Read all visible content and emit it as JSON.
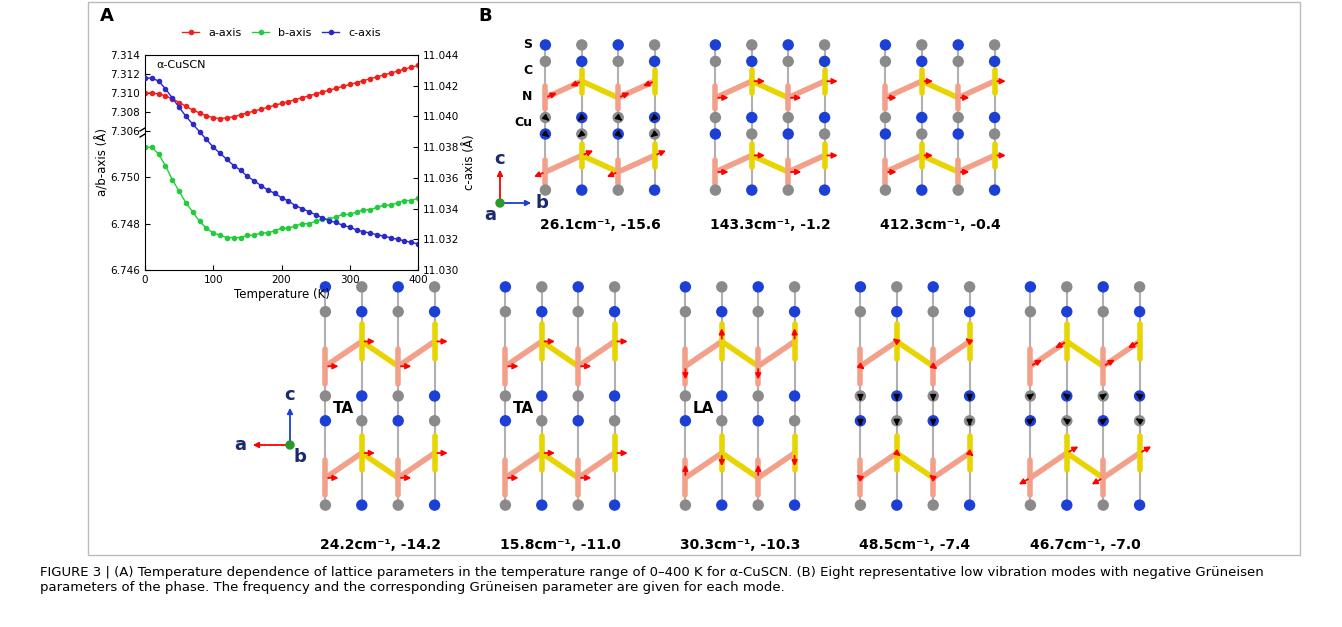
{
  "panel_labels": [
    "A",
    "B"
  ],
  "chart_data": {
    "type": "line",
    "title": "α-CuSCN",
    "xlabel": "Temperature (K)",
    "ylabel": "a/b-axis (Å)",
    "y2label": "c-axis (Å)",
    "x": [
      0,
      10,
      20,
      30,
      40,
      50,
      60,
      70,
      80,
      90,
      100,
      110,
      120,
      130,
      140,
      150,
      160,
      170,
      180,
      190,
      200,
      210,
      220,
      230,
      240,
      250,
      260,
      270,
      280,
      290,
      300,
      310,
      320,
      330,
      340,
      350,
      360,
      370,
      380,
      390,
      400
    ],
    "xlim": [
      0,
      400
    ],
    "xticks": [
      0,
      100,
      200,
      300,
      400
    ],
    "y_segments": [
      {
        "ylim": [
          7.306,
          7.314
        ],
        "yticks": [
          7.306,
          7.308,
          {
            "value": 7.31,
            "label": "7.310"
          },
          7.312,
          7.314
        ]
      },
      {
        "ylim": [
          6.746,
          6.752
        ],
        "yticks": [
          6.746,
          6.748,
          {
            "value": 6.75,
            "label": "6.750"
          }
        ]
      }
    ],
    "y2lim": [
      11.03,
      11.044
    ],
    "y2ticks": [
      {
        "value": 11.03,
        "label": "11.030"
      },
      11.032,
      11.034,
      11.036,
      11.038,
      {
        "value": 11.04,
        "label": "11.040"
      },
      11.042,
      11.044
    ],
    "legend": "upper center",
    "series": [
      {
        "name": "a-axis",
        "color": "#f0201c",
        "marker": "o",
        "segment": 0,
        "values": [
          7.31,
          7.31,
          7.3099,
          7.3097,
          7.3094,
          7.309,
          7.3086,
          7.3082,
          7.3079,
          7.3076,
          7.3074,
          7.3073,
          7.3074,
          7.3075,
          7.3077,
          7.3079,
          7.3081,
          7.3083,
          7.3085,
          7.3087,
          7.3089,
          7.3091,
          7.3093,
          7.3095,
          7.3097,
          7.3099,
          7.3101,
          7.3103,
          7.3105,
          7.3107,
          7.3109,
          7.3111,
          7.3113,
          7.3115,
          7.3117,
          7.3119,
          7.3121,
          7.3123,
          7.3125,
          7.3127,
          7.3129
        ]
      },
      {
        "name": "b-axis",
        "color": "#22cc3a",
        "marker": "o",
        "segment": 1,
        "values": [
          6.7513,
          6.7513,
          6.751,
          6.7505,
          6.7499,
          6.7494,
          6.7489,
          6.7485,
          6.7481,
          6.7478,
          6.7476,
          6.7475,
          6.7474,
          6.7474,
          6.7474,
          6.7475,
          6.7475,
          6.7476,
          6.7476,
          6.7477,
          6.7478,
          6.7478,
          6.7479,
          6.748,
          6.748,
          6.7481,
          6.7482,
          6.7482,
          6.7483,
          6.7484,
          6.7484,
          6.7485,
          6.7486,
          6.7486,
          6.7487,
          6.7488,
          6.7488,
          6.7489,
          6.749,
          6.749,
          6.7491
        ]
      },
      {
        "name": "c-axis",
        "color": "#2a2ac8",
        "marker": "o",
        "axis": "y2",
        "values": [
          11.0425,
          11.0425,
          11.0423,
          11.0418,
          11.0412,
          11.0406,
          11.04,
          11.0395,
          11.039,
          11.0385,
          11.038,
          11.0376,
          11.0372,
          11.0368,
          11.0365,
          11.0361,
          11.0358,
          11.0355,
          11.0352,
          11.035,
          11.0347,
          11.0345,
          11.0342,
          11.034,
          11.0338,
          11.0336,
          11.0334,
          11.0332,
          11.0331,
          11.0329,
          11.0328,
          11.0326,
          11.0325,
          11.0324,
          11.0323,
          11.0322,
          11.0321,
          11.032,
          11.0319,
          11.0318,
          11.0317
        ]
      }
    ]
  },
  "panel_b": {
    "atom_labels": [
      "S",
      "C",
      "N",
      "Cu"
    ],
    "axes_top": {
      "up": "c",
      "right": "b",
      "dot": "a"
    },
    "axes_bottom": {
      "up": "c",
      "left": "a",
      "dot": "b"
    },
    "modes_top": [
      {
        "caption": "26.1cm⁻¹, -15.6"
      },
      {
        "caption": "143.3cm⁻¹, -1.2"
      },
      {
        "caption": "412.3cm⁻¹, -0.4"
      }
    ],
    "modes_bottom": [
      {
        "caption": "24.2cm⁻¹, -14.2",
        "label": "TA"
      },
      {
        "caption": "15.8cm⁻¹, -11.0",
        "label": "TA"
      },
      {
        "caption": "30.3cm⁻¹, -10.3",
        "label": "LA"
      },
      {
        "caption": "48.5cm⁻¹, -7.4"
      },
      {
        "caption": "46.7cm⁻¹, -7.0"
      }
    ]
  },
  "caption": "FIGURE 3 | (A) Temperature dependence of lattice parameters in the temperature range of 0–400 K for α-CuSCN. (B) Eight representative low vibration modes with negative Grüneisen parameters of the phase. The frequency and the corresponding Grüneisen parameter are given for each mode."
}
